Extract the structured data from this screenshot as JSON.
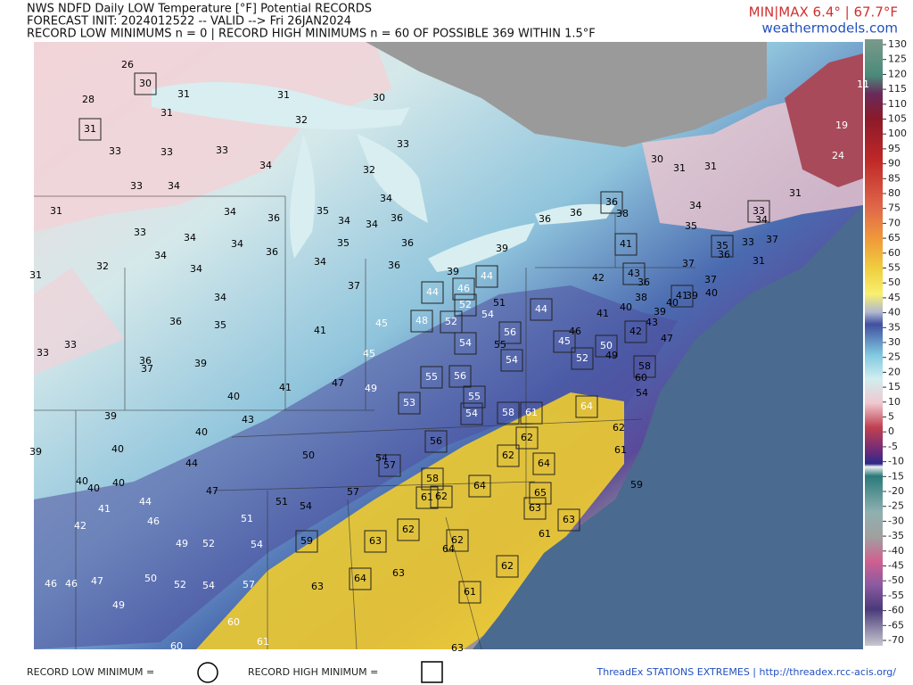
{
  "header": {
    "title": "NWS NDFD Daily LOW Temperature [°F] Potential RECORDS",
    "init": "FORECAST INIT: 2024012522 -- VALID --> Fri 26JAN2024",
    "summary": "RECORD LOW MINIMUMS n = 0 | RECORD HIGH MINIMUMS n = 60 OF POSSIBLE 369 WITHIN 1.5°F",
    "minmax": "MIN|MAX 6.4° | 67.7°F",
    "site": "weathermodels.com"
  },
  "colorbar": {
    "lim": [
      -70,
      130
    ],
    "ticks": [
      130,
      125,
      120,
      115,
      110,
      105,
      100,
      95,
      90,
      85,
      80,
      75,
      70,
      65,
      60,
      55,
      50,
      45,
      40,
      35,
      30,
      25,
      20,
      15,
      10,
      5,
      0,
      -5,
      -10,
      -15,
      -20,
      -25,
      -30,
      -35,
      -40,
      -45,
      -50,
      -55,
      -60,
      -65,
      -70
    ]
  },
  "stations": [
    {
      "value": 26,
      "record": false
    },
    {
      "value": 30,
      "record": true
    },
    {
      "value": 31,
      "record": false
    },
    {
      "value": 28,
      "record": false
    },
    {
      "value": 31,
      "record": false
    },
    {
      "value": 31,
      "record": true
    },
    {
      "value": 33,
      "record": false
    },
    {
      "value": 33,
      "record": false
    },
    {
      "value": 33,
      "record": false
    },
    {
      "value": 34,
      "record": false
    },
    {
      "value": 33,
      "record": false
    },
    {
      "value": 34,
      "record": false
    },
    {
      "value": 31,
      "record": false
    },
    {
      "value": 34,
      "record": false
    },
    {
      "value": 36,
      "record": false
    },
    {
      "value": 33,
      "record": false
    },
    {
      "value": 34,
      "record": false
    },
    {
      "value": 34,
      "record": false
    },
    {
      "value": 34,
      "record": false
    },
    {
      "value": 36,
      "record": false
    },
    {
      "value": 32,
      "record": false
    },
    {
      "value": 34,
      "record": false
    },
    {
      "value": 31,
      "record": false
    },
    {
      "value": 34,
      "record": false
    },
    {
      "value": 36,
      "record": false
    },
    {
      "value": 35,
      "record": false
    },
    {
      "value": 33,
      "record": false
    },
    {
      "value": 33,
      "record": false
    },
    {
      "value": 36,
      "record": false
    },
    {
      "value": 37,
      "record": false
    },
    {
      "value": 39,
      "record": false
    },
    {
      "value": 40,
      "record": false
    },
    {
      "value": 41,
      "record": false
    },
    {
      "value": 39,
      "record": false
    },
    {
      "value": 43,
      "record": false
    },
    {
      "value": 40,
      "record": false
    },
    {
      "value": 39,
      "record": false
    },
    {
      "value": 40,
      "record": false
    },
    {
      "value": 44,
      "record": false
    },
    {
      "value": 40,
      "record": false
    },
    {
      "value": 40,
      "record": false
    },
    {
      "value": 40,
      "record": false
    },
    {
      "value": 47,
      "record": false
    },
    {
      "value": 44,
      "record": false
    },
    {
      "value": 41,
      "record": false
    },
    {
      "value": 46,
      "record": false
    },
    {
      "value": 42,
      "record": false
    },
    {
      "value": 49,
      "record": false
    },
    {
      "value": 52,
      "record": false
    },
    {
      "value": 54,
      "record": false
    },
    {
      "value": 51,
      "record": false
    },
    {
      "value": 51,
      "record": false
    },
    {
      "value": 54,
      "record": false
    },
    {
      "value": 50,
      "record": false
    },
    {
      "value": 52,
      "record": false
    },
    {
      "value": 54,
      "record": false
    },
    {
      "value": 57,
      "record": false
    },
    {
      "value": 46,
      "record": false
    },
    {
      "value": 46,
      "record": false
    },
    {
      "value": 47,
      "record": false
    },
    {
      "value": 49,
      "record": false
    },
    {
      "value": 60,
      "record": false
    },
    {
      "value": 60,
      "record": false
    },
    {
      "value": 61,
      "record": false
    },
    {
      "value": 63,
      "record": false
    },
    {
      "value": 31,
      "record": false
    },
    {
      "value": 30,
      "record": false
    },
    {
      "value": 32,
      "record": false
    },
    {
      "value": 33,
      "record": false
    },
    {
      "value": 32,
      "record": false
    },
    {
      "value": 34,
      "record": false
    },
    {
      "value": 35,
      "record": false
    },
    {
      "value": 34,
      "record": false
    },
    {
      "value": 34,
      "record": false
    },
    {
      "value": 36,
      "record": false
    },
    {
      "value": 35,
      "record": false
    },
    {
      "value": 36,
      "record": false
    },
    {
      "value": 34,
      "record": false
    },
    {
      "value": 36,
      "record": false
    },
    {
      "value": 37,
      "record": false
    },
    {
      "value": 39,
      "record": false
    },
    {
      "value": 39,
      "record": false
    },
    {
      "value": 44,
      "record": true
    },
    {
      "value": 46,
      "record": true
    },
    {
      "value": 44,
      "record": true
    },
    {
      "value": 52,
      "record": true
    },
    {
      "value": 51,
      "record": false
    },
    {
      "value": 54,
      "record": false
    },
    {
      "value": 44,
      "record": true
    },
    {
      "value": 45,
      "record": false
    },
    {
      "value": 48,
      "record": true
    },
    {
      "value": 52,
      "record": true
    },
    {
      "value": 41,
      "record": false
    },
    {
      "value": 54,
      "record": true
    },
    {
      "value": 56,
      "record": true
    },
    {
      "value": 55,
      "record": false
    },
    {
      "value": 54,
      "record": true
    },
    {
      "value": 45,
      "record": false
    },
    {
      "value": 47,
      "record": false
    },
    {
      "value": 49,
      "record": false
    },
    {
      "value": 55,
      "record": true
    },
    {
      "value": 56,
      "record": true
    },
    {
      "value": 53,
      "record": true
    },
    {
      "value": 55,
      "record": true
    },
    {
      "value": 54,
      "record": true
    },
    {
      "value": 58,
      "record": true
    },
    {
      "value": 61,
      "record": true
    },
    {
      "value": 50,
      "record": false
    },
    {
      "value": 56,
      "record": true
    },
    {
      "value": 54,
      "record": false
    },
    {
      "value": 57,
      "record": true
    },
    {
      "value": 62,
      "record": true
    },
    {
      "value": 62,
      "record": true
    },
    {
      "value": 64,
      "record": true
    },
    {
      "value": 58,
      "record": true
    },
    {
      "value": 57,
      "record": false
    },
    {
      "value": 61,
      "record": true
    },
    {
      "value": 62,
      "record": true
    },
    {
      "value": 64,
      "record": true
    },
    {
      "value": 65,
      "record": true
    },
    {
      "value": 63,
      "record": true
    },
    {
      "value": 63,
      "record": true
    },
    {
      "value": 61,
      "record": false
    },
    {
      "value": 62,
      "record": true
    },
    {
      "value": 62,
      "record": true
    },
    {
      "value": 64,
      "record": false
    },
    {
      "value": 63,
      "record": true
    },
    {
      "value": 59,
      "record": true
    },
    {
      "value": 63,
      "record": false
    },
    {
      "value": 64,
      "record": true
    },
    {
      "value": 63,
      "record": false
    },
    {
      "value": 62,
      "record": true
    },
    {
      "value": 61,
      "record": true
    },
    {
      "value": 30,
      "record": false
    },
    {
      "value": 31,
      "record": false
    },
    {
      "value": 31,
      "record": false
    },
    {
      "value": 36,
      "record": true
    },
    {
      "value": 38,
      "record": false
    },
    {
      "value": 36,
      "record": false
    },
    {
      "value": 36,
      "record": false
    },
    {
      "value": 41,
      "record": true
    },
    {
      "value": 34,
      "record": false
    },
    {
      "value": 35,
      "record": false
    },
    {
      "value": 33,
      "record": true
    },
    {
      "value": 34,
      "record": false
    },
    {
      "value": 35,
      "record": true
    },
    {
      "value": 33,
      "record": false
    },
    {
      "value": 37,
      "record": false
    },
    {
      "value": 36,
      "record": false
    },
    {
      "value": 31,
      "record": false
    },
    {
      "value": 37,
      "record": false
    },
    {
      "value": 43,
      "record": true
    },
    {
      "value": 36,
      "record": false
    },
    {
      "value": 42,
      "record": false
    },
    {
      "value": 37,
      "record": false
    },
    {
      "value": 40,
      "record": false
    },
    {
      "value": 38,
      "record": false
    },
    {
      "value": 41,
      "record": true
    },
    {
      "value": 39,
      "record": false
    },
    {
      "value": 40,
      "record": false
    },
    {
      "value": 40,
      "record": false
    },
    {
      "value": 41,
      "record": false
    },
    {
      "value": 39,
      "record": false
    },
    {
      "value": 43,
      "record": false
    },
    {
      "value": 42,
      "record": true
    },
    {
      "value": 47,
      "record": false
    },
    {
      "value": 46,
      "record": false
    },
    {
      "value": 45,
      "record": true
    },
    {
      "value": 50,
      "record": true
    },
    {
      "value": 49,
      "record": false
    },
    {
      "value": 52,
      "record": true
    },
    {
      "value": 58,
      "record": true
    },
    {
      "value": 60,
      "record": false
    },
    {
      "value": 54,
      "record": false
    },
    {
      "value": 64,
      "record": true
    },
    {
      "value": 62,
      "record": false
    },
    {
      "value": 61,
      "record": false
    },
    {
      "value": 59,
      "record": false
    },
    {
      "value": 19,
      "record": false
    },
    {
      "value": 24,
      "record": false
    },
    {
      "value": 11,
      "record": false
    },
    {
      "value": 31,
      "record": false
    }
  ],
  "footer": {
    "low_label": "RECORD LOW MINIMUM =",
    "high_label": "RECORD HIGH MINIMUM =",
    "source": "ThreadEx STATIONS EXTREMES | http://threadex.rcc-acis.org/"
  }
}
